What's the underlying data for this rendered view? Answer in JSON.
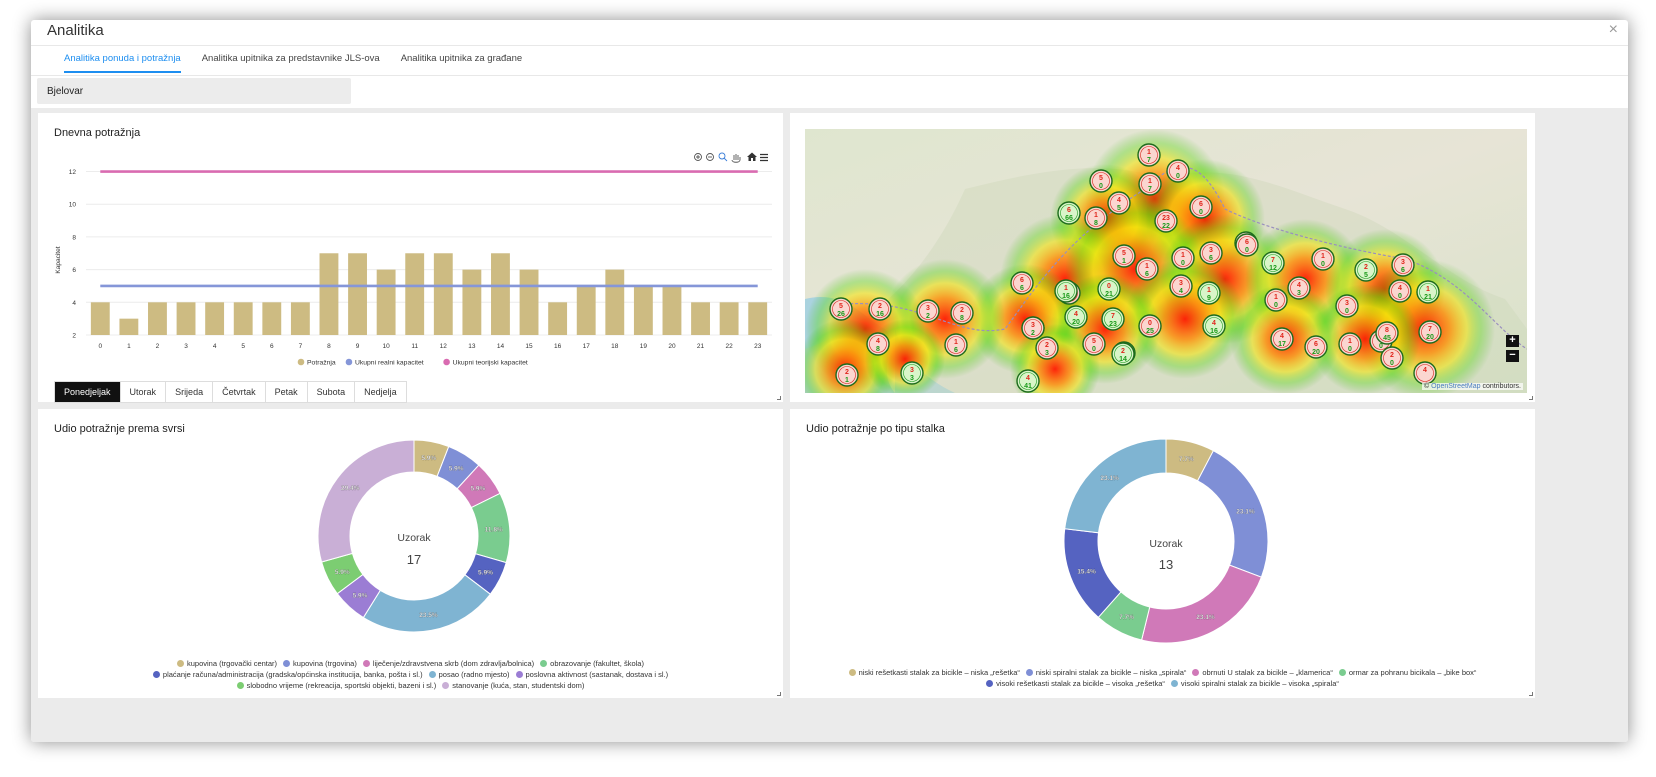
{
  "modal": {
    "title": "Analitika",
    "close": "×"
  },
  "tabs": [
    {
      "label": "Analitika ponuda i potražnja",
      "active": true
    },
    {
      "label": "Analitika upitnika za predstavnike JLS-ova",
      "active": false
    },
    {
      "label": "Analitika upitnika za građane",
      "active": false
    }
  ],
  "city": "Bjelovar",
  "daily_panel": {
    "title": "Dnevna potražnja",
    "ylabel": "Kapacitet",
    "days": [
      "Ponedjeljak",
      "Utorak",
      "Srijeda",
      "Četvrtak",
      "Petak",
      "Subota",
      "Nedjelja"
    ],
    "active_day": "Ponedjeljak"
  },
  "map_panel": {
    "attribution_prefix": "© ",
    "attribution_link": "OpenStreetMap",
    "attribution_suffix": " contributors.",
    "zoom_in": "+",
    "zoom_out": "−"
  },
  "purpose_panel": {
    "title": "Udio potražnje prema svrsi",
    "center_label": "Uzorak",
    "center_value": "17"
  },
  "rack_panel": {
    "title": "Udio potražnje po tipu stalka",
    "center_label": "Uzorak",
    "center_value": "13"
  },
  "chart_data": [
    {
      "type": "bar",
      "title": "Dnevna potražnja",
      "ylabel": "Kapacitet",
      "categories": [
        "0",
        "1",
        "2",
        "3",
        "4",
        "5",
        "6",
        "7",
        "8",
        "9",
        "10",
        "11",
        "12",
        "13",
        "14",
        "15",
        "16",
        "17",
        "18",
        "19",
        "20",
        "21",
        "22",
        "23"
      ],
      "yticks": [
        2,
        4,
        6,
        8,
        10,
        12
      ],
      "ylim": [
        2,
        12.4
      ],
      "series": [
        {
          "name": "Potražnja",
          "kind": "bar",
          "color": "#cdbb82",
          "values": [
            4,
            3,
            4,
            4,
            4,
            4,
            4,
            4,
            7,
            7,
            6,
            7,
            7,
            6,
            7,
            6,
            4,
            5,
            6,
            5,
            5,
            4,
            4,
            4
          ]
        },
        {
          "name": "Ukupni realni kapacitet",
          "kind": "line",
          "color": "#8596d8",
          "values": [
            5,
            5,
            5,
            5,
            5,
            5,
            5,
            5,
            5,
            5,
            5,
            5,
            5,
            5,
            5,
            5,
            5,
            5,
            5,
            5,
            5,
            5,
            5,
            5
          ]
        },
        {
          "name": "Ukupni teorijski kapacitet",
          "kind": "line",
          "color": "#d96bb1",
          "values": [
            12,
            12,
            12,
            12,
            12,
            12,
            12,
            12,
            12,
            12,
            12,
            12,
            12,
            12,
            12,
            12,
            12,
            12,
            12,
            12,
            12,
            12,
            12,
            12
          ]
        }
      ],
      "legend": "bottom"
    },
    {
      "type": "pie",
      "title": "Udio potražnje prema svrsi",
      "center_label": "Uzorak",
      "center_value": 17,
      "slices": [
        {
          "label": "kupovina (trgovački centar)",
          "value": 5.9,
          "color": "#cdbb82"
        },
        {
          "label": "kupovina (trgovina)",
          "value": 5.9,
          "color": "#7f8fd6"
        },
        {
          "label": "liječenje/zdravstvena skrb (dom zdravlja/bolnica)",
          "value": 5.9,
          "color": "#d079b8"
        },
        {
          "label": "obrazovanje (fakultet, škola)",
          "value": 11.8,
          "color": "#7acc8f"
        },
        {
          "label": "plaćanje računa/administracija (gradska/općinska institucija, banka, pošta i sl.)",
          "value": 5.9,
          "color": "#5563c1"
        },
        {
          "label": "posao (radno mjesto)",
          "value": 23.5,
          "color": "#7fb4d2"
        },
        {
          "label": "poslovna aktivnost (sastanak, dostava i sl.)",
          "value": 5.9,
          "color": "#9b7dd4"
        },
        {
          "label": "slobodno vrijeme (rekreacija, sportski objekti, bazeni i sl.)",
          "value": 5.9,
          "color": "#7ccd72"
        },
        {
          "label": "stanovanje (kuća, stan, studentski dom)",
          "value": 29.4,
          "color": "#c9afd6"
        }
      ],
      "legend": "bottom"
    },
    {
      "type": "pie",
      "title": "Udio potražnje po tipu stalka",
      "center_label": "Uzorak",
      "center_value": 13,
      "slices": [
        {
          "label": "niski rešetkasti stalak za bicikle – niska „rešetka“",
          "value": 7.7,
          "color": "#cdbb82"
        },
        {
          "label": "niski spiralni stalak za bicikle – niska „spirala“",
          "value": 23.1,
          "color": "#7f8fd6"
        },
        {
          "label": "obrnuti U stalak za bicikle – „klamerica“",
          "value": 23.1,
          "color": "#d079b8"
        },
        {
          "label": "ormar za pohranu bicikala – „bike box“",
          "value": 7.7,
          "color": "#7acc8f"
        },
        {
          "label": "visoki rešetkasti stalak za bicikle – visoka „rešetka“",
          "value": 15.4,
          "color": "#5563c1"
        },
        {
          "label": "visoki spiralni stalak za bicikle – visoka „spirala“",
          "value": 23.1,
          "color": "#7fb4d2"
        }
      ],
      "legend": "bottom"
    }
  ],
  "map_clusters": [
    {
      "top": "1",
      "bottom": "7",
      "color": "red"
    },
    {
      "top": "4",
      "bottom": "0",
      "color": "red"
    },
    {
      "top": "5",
      "bottom": "0",
      "color": "red"
    },
    {
      "top": "4",
      "bottom": "5",
      "color": "red"
    },
    {
      "top": "6",
      "bottom": "66",
      "color": "green"
    },
    {
      "top": "1",
      "bottom": "8",
      "color": "red"
    },
    {
      "top": "23",
      "bottom": "22",
      "color": "red"
    },
    {
      "top": "6",
      "bottom": "0",
      "color": "red"
    },
    {
      "top": "1",
      "bottom": "7",
      "color": "red"
    },
    {
      "top": "4",
      "bottom": "0",
      "color": "red"
    },
    {
      "top": "5",
      "bottom": "26",
      "color": "red"
    },
    {
      "top": "2",
      "bottom": "16",
      "color": "red"
    },
    {
      "top": "3",
      "bottom": "2",
      "color": "red"
    },
    {
      "top": "2",
      "bottom": "8",
      "color": "red"
    },
    {
      "top": "6",
      "bottom": "0",
      "color": "red"
    },
    {
      "top": "1",
      "bottom": "6",
      "color": "red"
    },
    {
      "top": "6",
      "bottom": "41",
      "color": "red"
    },
    {
      "top": "5",
      "bottom": "1",
      "color": "red"
    },
    {
      "top": "1",
      "bottom": "6",
      "color": "red"
    },
    {
      "top": "1",
      "bottom": "0",
      "color": "red"
    },
    {
      "top": "3",
      "bottom": "6",
      "color": "red"
    },
    {
      "top": "6",
      "bottom": "0",
      "color": "red"
    },
    {
      "top": "7",
      "bottom": "12",
      "color": "green"
    },
    {
      "top": "1",
      "bottom": "0",
      "color": "red"
    },
    {
      "top": "2",
      "bottom": "5",
      "color": "green"
    },
    {
      "top": "3",
      "bottom": "6",
      "color": "red"
    },
    {
      "top": "4",
      "bottom": "0",
      "color": "red"
    },
    {
      "top": "1",
      "bottom": "21",
      "color": "green"
    },
    {
      "top": "6",
      "bottom": "6",
      "color": "red"
    },
    {
      "top": "1",
      "bottom": "16",
      "color": "green"
    },
    {
      "top": "0",
      "bottom": "21",
      "color": "green"
    },
    {
      "top": "3",
      "bottom": "4",
      "color": "red"
    },
    {
      "top": "1",
      "bottom": "9",
      "color": "green"
    },
    {
      "top": "1",
      "bottom": "0",
      "color": "red"
    },
    {
      "top": "4",
      "bottom": "3",
      "color": "red"
    },
    {
      "top": "3",
      "bottom": "0",
      "color": "red"
    },
    {
      "top": "4",
      "bottom": "20",
      "color": "green"
    },
    {
      "top": "7",
      "bottom": "23",
      "color": "green"
    },
    {
      "top": "0",
      "bottom": "25",
      "color": "red"
    },
    {
      "top": "4",
      "bottom": "16",
      "color": "green"
    },
    {
      "top": "3",
      "bottom": "2",
      "color": "red"
    },
    {
      "top": "2",
      "bottom": "3",
      "color": "red"
    },
    {
      "top": "5",
      "bottom": "0",
      "color": "red"
    },
    {
      "top": "1",
      "bottom": "6",
      "color": "green"
    },
    {
      "top": "1",
      "bottom": "0",
      "color": "red"
    },
    {
      "top": "4",
      "bottom": "17",
      "color": "red"
    },
    {
      "top": "6",
      "bottom": "20",
      "color": "red"
    },
    {
      "top": "1",
      "bottom": "0",
      "color": "red"
    },
    {
      "top": "8",
      "bottom": "45",
      "color": "red"
    },
    {
      "top": "7",
      "bottom": "20",
      "color": "red"
    },
    {
      "top": "2",
      "bottom": "0",
      "color": "red"
    },
    {
      "top": "3",
      "bottom": "3",
      "color": "green"
    },
    {
      "top": "4",
      "bottom": "41",
      "color": "green"
    },
    {
      "top": "2",
      "bottom": "1",
      "color": "red"
    },
    {
      "top": "4",
      "bottom": "8",
      "color": "red"
    },
    {
      "top": "2",
      "bottom": "14",
      "color": "green"
    },
    {
      "top": "4",
      "bottom": "",
      "color": "red"
    }
  ]
}
